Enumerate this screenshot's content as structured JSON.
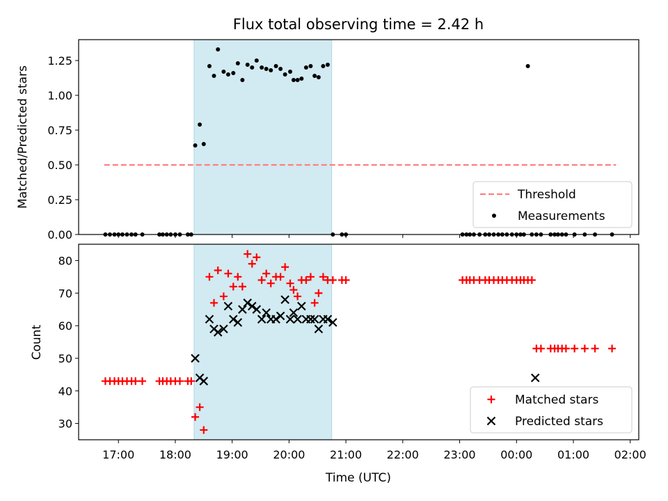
{
  "chart_data": [
    {
      "type": "scatter",
      "title": "Flux total observing time = 2.42 h",
      "ylabel": "Matched/Predicted stars",
      "xlabel": "",
      "ylim": [
        0,
        1.4
      ],
      "y_ticks": [
        0.0,
        0.25,
        0.5,
        0.75,
        1.0,
        1.25
      ],
      "y_tick_labels": [
        "0.00",
        "0.25",
        "0.50",
        "0.75",
        "1.00",
        "1.25"
      ],
      "x_range_hours": [
        16.3,
        26.15
      ],
      "observing_window_hours": [
        18.33,
        20.75
      ],
      "window_color": "#add8e6",
      "legend": {
        "placement": "lower right",
        "entries": [
          "Threshold",
          "Measurements"
        ]
      },
      "series": [
        {
          "name": "Threshold",
          "style": "dashed-line",
          "color": "#ff7f7f",
          "x": [
            16.75,
            25.75
          ],
          "y": [
            0.5,
            0.5
          ]
        },
        {
          "name": "Measurements",
          "style": "dot",
          "color": "#000000",
          "x": [
            16.77,
            16.85,
            16.93,
            17.0,
            17.07,
            17.15,
            17.23,
            17.3,
            17.42,
            17.72,
            17.78,
            17.85,
            17.92,
            18.0,
            18.08,
            18.22,
            18.28,
            18.35,
            18.43,
            18.5,
            18.6,
            18.68,
            18.75,
            18.85,
            18.93,
            19.02,
            19.1,
            19.18,
            19.27,
            19.35,
            19.43,
            19.52,
            19.6,
            19.68,
            19.77,
            19.85,
            19.93,
            20.02,
            20.08,
            20.15,
            20.22,
            20.3,
            20.38,
            20.45,
            20.52,
            20.6,
            20.68,
            20.77,
            20.93,
            21.0,
            23.05,
            23.12,
            23.18,
            23.25,
            23.35,
            23.45,
            23.52,
            23.6,
            23.68,
            23.75,
            23.83,
            23.92,
            24.0,
            24.07,
            24.13,
            24.2,
            24.27,
            24.35,
            24.43,
            24.6,
            24.67,
            24.73,
            24.8,
            24.87,
            25.02,
            25.2,
            25.38,
            25.68
          ],
          "y": [
            0,
            0,
            0,
            0,
            0,
            0,
            0,
            0,
            0,
            0,
            0,
            0,
            0,
            0,
            0,
            0,
            0,
            0.64,
            0.79,
            0.65,
            1.21,
            1.14,
            1.33,
            1.17,
            1.15,
            1.16,
            1.23,
            1.11,
            1.22,
            1.2,
            1.25,
            1.2,
            1.19,
            1.18,
            1.21,
            1.19,
            1.15,
            1.17,
            1.11,
            1.11,
            1.12,
            1.2,
            1.21,
            1.14,
            1.13,
            1.21,
            1.22,
            0,
            0,
            0,
            0,
            0,
            0,
            0,
            0,
            0,
            0,
            0,
            0,
            0,
            0,
            0,
            0,
            0,
            0,
            1.21,
            0,
            0,
            0,
            0,
            0,
            0,
            0,
            0,
            0,
            0,
            0,
            0
          ]
        }
      ]
    },
    {
      "type": "scatter",
      "title": "",
      "ylabel": "Count",
      "xlabel": "Time (UTC)",
      "ylim": [
        25,
        85
      ],
      "y_ticks": [
        30,
        40,
        50,
        60,
        70,
        80
      ],
      "y_tick_labels": [
        "30",
        "40",
        "50",
        "60",
        "70",
        "80"
      ],
      "x_ticks_hours": [
        17,
        18,
        19,
        20,
        21,
        22,
        23,
        24,
        25,
        26
      ],
      "x_tick_labels": [
        "17:00",
        "18:00",
        "19:00",
        "20:00",
        "21:00",
        "22:00",
        "23:00",
        "00:00",
        "01:00",
        "02:00"
      ],
      "x_range_hours": [
        16.3,
        26.15
      ],
      "observing_window_hours": [
        18.33,
        20.75
      ],
      "window_color": "#add8e6",
      "legend": {
        "placement": "lower right",
        "entries": [
          "Matched stars",
          "Predicted stars"
        ]
      },
      "series": [
        {
          "name": "Matched stars",
          "marker": "+",
          "color": "#ff0000",
          "x": [
            16.77,
            16.85,
            16.93,
            17.0,
            17.07,
            17.15,
            17.23,
            17.3,
            17.42,
            17.72,
            17.78,
            17.85,
            17.92,
            18.0,
            18.08,
            18.22,
            18.28,
            18.35,
            18.43,
            18.5,
            18.6,
            18.68,
            18.75,
            18.85,
            18.93,
            19.02,
            19.1,
            19.18,
            19.27,
            19.35,
            19.43,
            19.52,
            19.6,
            19.68,
            19.77,
            19.85,
            19.93,
            20.02,
            20.08,
            20.15,
            20.22,
            20.3,
            20.38,
            20.45,
            20.52,
            20.6,
            20.68,
            20.77,
            20.93,
            21.0,
            23.05,
            23.12,
            23.18,
            23.25,
            23.35,
            23.45,
            23.52,
            23.6,
            23.68,
            23.75,
            23.83,
            23.92,
            24.0,
            24.07,
            24.13,
            24.2,
            24.27,
            24.35,
            24.43,
            24.6,
            24.67,
            24.73,
            24.8,
            24.87,
            25.02,
            25.2,
            25.38,
            25.68
          ],
          "y": [
            43,
            43,
            43,
            43,
            43,
            43,
            43,
            43,
            43,
            43,
            43,
            43,
            43,
            43,
            43,
            43,
            43,
            32,
            35,
            28,
            75,
            67,
            77,
            69,
            76,
            72,
            75,
            72,
            82,
            79,
            81,
            74,
            76,
            73,
            75,
            75,
            78,
            73,
            71,
            69,
            74,
            74,
            75,
            67,
            70,
            75,
            74,
            74,
            74,
            74,
            74,
            74,
            74,
            74,
            74,
            74,
            74,
            74,
            74,
            74,
            74,
            74,
            74,
            74,
            74,
            74,
            74,
            53,
            53,
            53,
            53,
            53,
            53,
            53,
            53,
            53,
            53,
            53
          ]
        },
        {
          "name": "Predicted stars",
          "marker": "x",
          "color": "#000000",
          "x": [
            18.35,
            18.43,
            18.5,
            18.6,
            18.68,
            18.75,
            18.85,
            18.93,
            19.02,
            19.1,
            19.18,
            19.27,
            19.35,
            19.43,
            19.52,
            19.6,
            19.68,
            19.77,
            19.85,
            19.93,
            20.02,
            20.08,
            20.15,
            20.22,
            20.3,
            20.38,
            20.45,
            20.52,
            20.6,
            20.68,
            20.77,
            24.33
          ],
          "y": [
            50,
            44,
            43,
            62,
            59,
            58,
            59,
            66,
            62,
            61,
            65,
            67,
            66,
            65,
            62,
            64,
            62,
            62,
            63,
            68,
            62,
            64,
            62,
            66,
            62,
            62,
            62,
            59,
            62,
            62,
            61,
            44
          ]
        }
      ]
    }
  ]
}
